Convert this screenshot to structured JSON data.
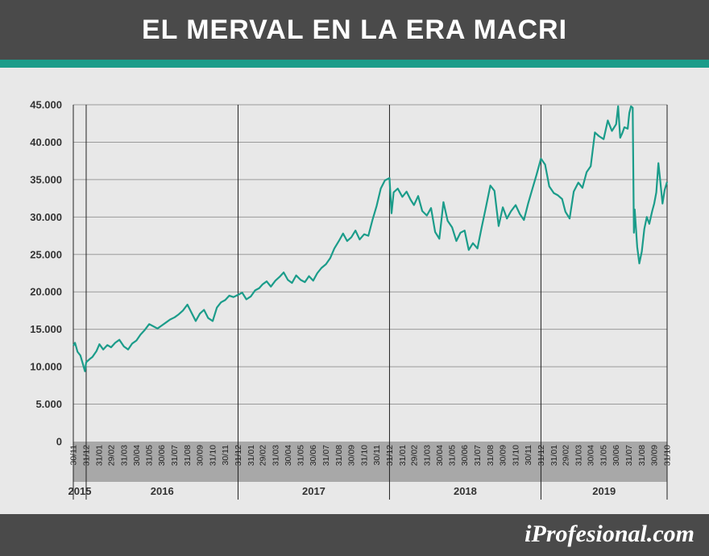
{
  "header": {
    "title": "EL MERVAL EN LA ERA MACRI"
  },
  "footer": {
    "brand": "iProfesional.com"
  },
  "colors": {
    "line": "#1b9c8a",
    "accent": "#1b9c8a",
    "header_bg": "#4a4a4a",
    "plot_bg": "#e8e8e8",
    "axis_band": "#a8a8a8"
  },
  "chart_data": {
    "type": "line",
    "title": "EL MERVAL EN LA ERA MACRI",
    "xlabel": "",
    "ylabel": "",
    "ylim": [
      0,
      45000
    ],
    "grid": true,
    "legend": "none",
    "y_ticks": [
      "0",
      "5.000",
      "10.000",
      "15.000",
      "20.000",
      "25.000",
      "30.000",
      "35.000",
      "40.000",
      "45.000"
    ],
    "y_tick_values": [
      0,
      5000,
      10000,
      15000,
      20000,
      25000,
      30000,
      35000,
      40000,
      45000
    ],
    "x_ticks": [
      "30/11",
      "31/12",
      "31/01",
      "29/02",
      "31/03",
      "30/04",
      "31/05",
      "30/06",
      "31/07",
      "31/08",
      "30/09",
      "31/10",
      "30/11",
      "31/12",
      "31/01",
      "29/02",
      "31/03",
      "30/04",
      "31/05",
      "30/06",
      "31/07",
      "31/08",
      "30/09",
      "31/10",
      "30/11",
      "31/12",
      "31/01",
      "29/02",
      "31/03",
      "30/04",
      "31/05",
      "30/06",
      "31/07",
      "31/08",
      "30/09",
      "31/10",
      "30/11",
      "31/12",
      "31/01",
      "29/02",
      "31/03",
      "30/04",
      "31/05",
      "30/06",
      "31/07",
      "31/08",
      "30/09",
      "31/10"
    ],
    "x_tick_dates": [
      "2015-11-30",
      "2015-12-31",
      "2016-01-31",
      "2016-02-29",
      "2016-03-31",
      "2016-04-30",
      "2016-05-31",
      "2016-06-30",
      "2016-07-31",
      "2016-08-31",
      "2016-09-30",
      "2016-10-31",
      "2016-11-30",
      "2016-12-31",
      "2017-01-31",
      "2017-02-28",
      "2017-03-31",
      "2017-04-30",
      "2017-05-31",
      "2017-06-30",
      "2017-07-31",
      "2017-08-31",
      "2017-09-30",
      "2017-10-31",
      "2017-11-30",
      "2017-12-31",
      "2018-01-31",
      "2018-02-28",
      "2018-03-31",
      "2018-04-30",
      "2018-05-31",
      "2018-06-30",
      "2018-07-31",
      "2018-08-31",
      "2018-09-30",
      "2018-10-31",
      "2018-11-30",
      "2018-12-31",
      "2019-01-31",
      "2019-02-28",
      "2019-03-31",
      "2019-04-30",
      "2019-05-31",
      "2019-06-30",
      "2019-07-31",
      "2019-08-31",
      "2019-09-30",
      "2019-10-31"
    ],
    "years": [
      {
        "label": "2015",
        "start": "2015-11-30",
        "end": "2015-12-31"
      },
      {
        "label": "2016",
        "start": "2015-12-31",
        "end": "2016-12-31"
      },
      {
        "label": "2017",
        "start": "2016-12-31",
        "end": "2017-12-31"
      },
      {
        "label": "2018",
        "start": "2017-12-31",
        "end": "2018-12-31"
      },
      {
        "label": "2019",
        "start": "2018-12-31",
        "end": "2019-10-31"
      }
    ],
    "series": [
      {
        "color": "#1b9c8a",
        "points": [
          [
            "2015-11-30",
            12800
          ],
          [
            "2015-12-04",
            13200
          ],
          [
            "2015-12-10",
            12000
          ],
          [
            "2015-12-17",
            11500
          ],
          [
            "2015-12-23",
            10400
          ],
          [
            "2015-12-28",
            9400
          ],
          [
            "2015-12-31",
            10600
          ],
          [
            "2016-01-08",
            11000
          ],
          [
            "2016-01-15",
            11300
          ],
          [
            "2016-01-25",
            12100
          ],
          [
            "2016-02-01",
            13000
          ],
          [
            "2016-02-10",
            12300
          ],
          [
            "2016-02-20",
            12900
          ],
          [
            "2016-02-29",
            12600
          ],
          [
            "2016-03-10",
            13200
          ],
          [
            "2016-03-20",
            13600
          ],
          [
            "2016-03-31",
            12700
          ],
          [
            "2016-04-10",
            12300
          ],
          [
            "2016-04-20",
            13100
          ],
          [
            "2016-04-30",
            13500
          ],
          [
            "2016-05-10",
            14300
          ],
          [
            "2016-05-20",
            14900
          ],
          [
            "2016-05-31",
            15700
          ],
          [
            "2016-06-10",
            15400
          ],
          [
            "2016-06-20",
            15100
          ],
          [
            "2016-06-30",
            15500
          ],
          [
            "2016-07-10",
            15900
          ],
          [
            "2016-07-20",
            16300
          ],
          [
            "2016-07-31",
            16600
          ],
          [
            "2016-08-10",
            17000
          ],
          [
            "2016-08-20",
            17500
          ],
          [
            "2016-08-31",
            18300
          ],
          [
            "2016-09-10",
            17200
          ],
          [
            "2016-09-20",
            16100
          ],
          [
            "2016-09-30",
            17100
          ],
          [
            "2016-10-10",
            17600
          ],
          [
            "2016-10-20",
            16500
          ],
          [
            "2016-10-31",
            16100
          ],
          [
            "2016-11-10",
            17900
          ],
          [
            "2016-11-20",
            18600
          ],
          [
            "2016-11-30",
            18900
          ],
          [
            "2016-12-10",
            19500
          ],
          [
            "2016-12-20",
            19300
          ],
          [
            "2016-12-31",
            19600
          ],
          [
            "2017-01-10",
            19900
          ],
          [
            "2017-01-20",
            19000
          ],
          [
            "2017-01-31",
            19400
          ],
          [
            "2017-02-10",
            20200
          ],
          [
            "2017-02-20",
            20500
          ],
          [
            "2017-02-28",
            21000
          ],
          [
            "2017-03-10",
            21400
          ],
          [
            "2017-03-20",
            20700
          ],
          [
            "2017-03-31",
            21500
          ],
          [
            "2017-04-10",
            22000
          ],
          [
            "2017-04-20",
            22600
          ],
          [
            "2017-04-30",
            21600
          ],
          [
            "2017-05-10",
            21200
          ],
          [
            "2017-05-20",
            22200
          ],
          [
            "2017-05-31",
            21600
          ],
          [
            "2017-06-10",
            21300
          ],
          [
            "2017-06-20",
            22100
          ],
          [
            "2017-06-30",
            21500
          ],
          [
            "2017-07-10",
            22500
          ],
          [
            "2017-07-20",
            23200
          ],
          [
            "2017-07-31",
            23700
          ],
          [
            "2017-08-10",
            24500
          ],
          [
            "2017-08-20",
            25800
          ],
          [
            "2017-08-31",
            26800
          ],
          [
            "2017-09-10",
            27800
          ],
          [
            "2017-09-20",
            26800
          ],
          [
            "2017-09-30",
            27300
          ],
          [
            "2017-10-10",
            28200
          ],
          [
            "2017-10-20",
            27000
          ],
          [
            "2017-10-31",
            27700
          ],
          [
            "2017-11-10",
            27500
          ],
          [
            "2017-11-20",
            29600
          ],
          [
            "2017-11-30",
            31500
          ],
          [
            "2017-12-10",
            33800
          ],
          [
            "2017-12-20",
            34900
          ],
          [
            "2017-12-31",
            35200
          ],
          [
            "2018-01-05",
            30500
          ],
          [
            "2018-01-10",
            33300
          ],
          [
            "2018-01-20",
            33800
          ],
          [
            "2018-01-31",
            32700
          ],
          [
            "2018-02-10",
            33400
          ],
          [
            "2018-02-20",
            32300
          ],
          [
            "2018-02-28",
            31600
          ],
          [
            "2018-03-10",
            32800
          ],
          [
            "2018-03-20",
            30800
          ],
          [
            "2018-03-31",
            30200
          ],
          [
            "2018-04-10",
            31200
          ],
          [
            "2018-04-20",
            28000
          ],
          [
            "2018-04-30",
            27100
          ],
          [
            "2018-05-10",
            32000
          ],
          [
            "2018-05-20",
            29500
          ],
          [
            "2018-05-31",
            28600
          ],
          [
            "2018-06-10",
            26800
          ],
          [
            "2018-06-20",
            27900
          ],
          [
            "2018-06-30",
            28200
          ],
          [
            "2018-07-10",
            25600
          ],
          [
            "2018-07-20",
            26500
          ],
          [
            "2018-07-31",
            25800
          ],
          [
            "2018-08-10",
            28600
          ],
          [
            "2018-08-20",
            31200
          ],
          [
            "2018-08-31",
            34200
          ],
          [
            "2018-09-10",
            33500
          ],
          [
            "2018-09-20",
            28800
          ],
          [
            "2018-09-30",
            31300
          ],
          [
            "2018-10-10",
            29800
          ],
          [
            "2018-10-20",
            30800
          ],
          [
            "2018-10-31",
            31600
          ],
          [
            "2018-11-10",
            30400
          ],
          [
            "2018-11-20",
            29600
          ],
          [
            "2018-11-30",
            31800
          ],
          [
            "2018-12-10",
            33700
          ],
          [
            "2018-12-20",
            35600
          ],
          [
            "2018-12-31",
            37800
          ],
          [
            "2019-01-10",
            37000
          ],
          [
            "2019-01-20",
            34100
          ],
          [
            "2019-01-31",
            33200
          ],
          [
            "2019-02-10",
            32900
          ],
          [
            "2019-02-20",
            32400
          ],
          [
            "2019-02-28",
            30700
          ],
          [
            "2019-03-10",
            29800
          ],
          [
            "2019-03-20",
            33400
          ],
          [
            "2019-03-31",
            34600
          ],
          [
            "2019-04-10",
            33900
          ],
          [
            "2019-04-20",
            36000
          ],
          [
            "2019-04-30",
            36800
          ],
          [
            "2019-05-10",
            41300
          ],
          [
            "2019-05-20",
            40800
          ],
          [
            "2019-05-31",
            40400
          ],
          [
            "2019-06-10",
            42900
          ],
          [
            "2019-06-20",
            41500
          ],
          [
            "2019-06-30",
            42400
          ],
          [
            "2019-07-05",
            44800
          ],
          [
            "2019-07-10",
            40600
          ],
          [
            "2019-07-15",
            41200
          ],
          [
            "2019-07-20",
            42000
          ],
          [
            "2019-07-28",
            41800
          ],
          [
            "2019-08-01",
            43900
          ],
          [
            "2019-08-05",
            44800
          ],
          [
            "2019-08-09",
            44600
          ],
          [
            "2019-08-12",
            27900
          ],
          [
            "2019-08-14",
            31000
          ],
          [
            "2019-08-20",
            26000
          ],
          [
            "2019-08-25",
            23800
          ],
          [
            "2019-08-31",
            25400
          ],
          [
            "2019-09-06",
            28400
          ],
          [
            "2019-09-12",
            30000
          ],
          [
            "2019-09-18",
            29100
          ],
          [
            "2019-09-25",
            30800
          ],
          [
            "2019-09-30",
            31800
          ],
          [
            "2019-10-05",
            33300
          ],
          [
            "2019-10-10",
            37200
          ],
          [
            "2019-10-15",
            34500
          ],
          [
            "2019-10-20",
            31800
          ],
          [
            "2019-10-25",
            33600
          ],
          [
            "2019-10-31",
            34700
          ]
        ]
      }
    ]
  }
}
